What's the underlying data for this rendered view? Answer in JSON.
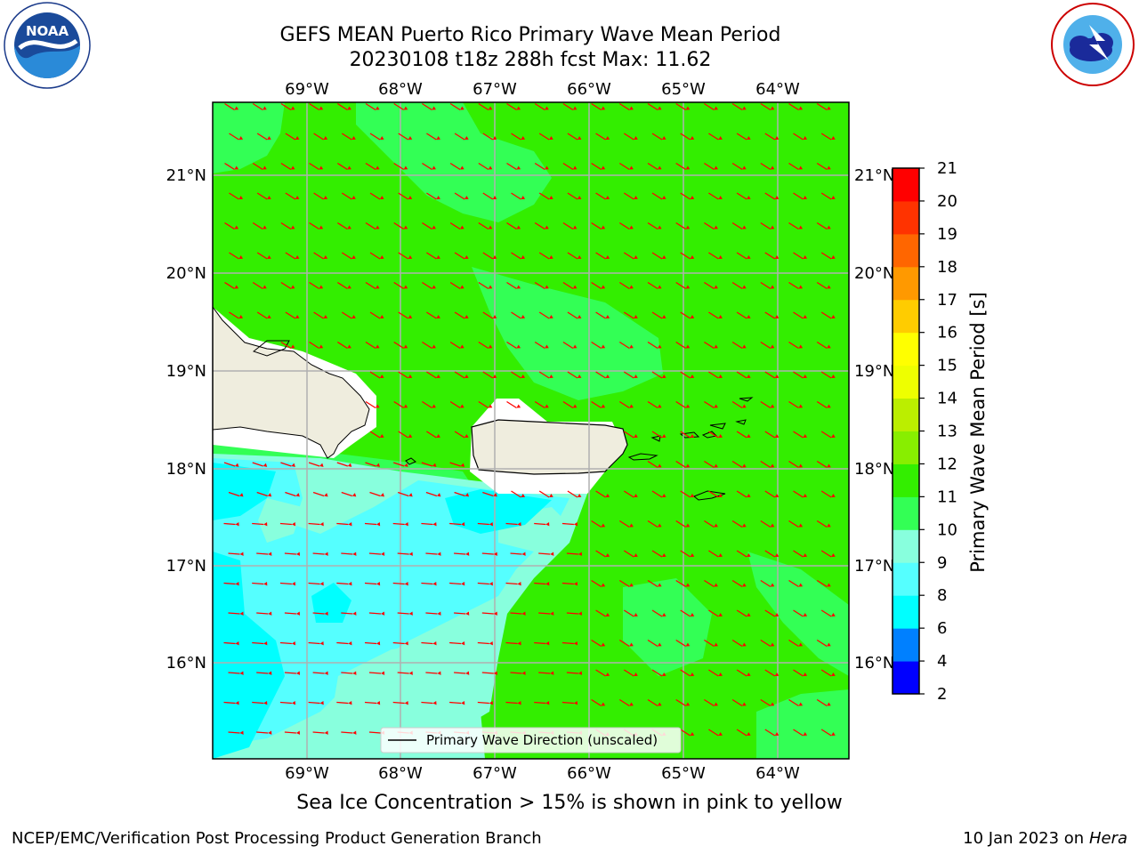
{
  "title": {
    "line1": "GEFS MEAN Puerto Rico Primary Wave Mean Period",
    "line2": "20230108 t18z 288h fcst   Max: 11.62"
  },
  "logos": {
    "noaa_text": "NOAA",
    "noaa_ring_text": "NATIONAL OCEANIC AND ATMOSPHERIC ADMINISTRATION · U.S. DEPARTMENT OF COMMERCE",
    "nws_ring_text": "NATIONAL WEATHER SERVICE"
  },
  "map": {
    "lon_labels": [
      "69°W",
      "68°W",
      "67°W",
      "66°W",
      "65°W",
      "64°W"
    ],
    "lat_labels": [
      "21°N",
      "20°N",
      "19°N",
      "18°N",
      "17°N",
      "16°N"
    ],
    "legend_label": "Primary Wave Direction (unscaled)",
    "arrow_color": "#ff0000",
    "land_color": "#efedde",
    "colors": {
      "green": "#33ee00",
      "light_green": "#33ff55",
      "aqua": "#88ffdd",
      "cyan_light": "#55ffff",
      "cyan": "#00ffff"
    }
  },
  "colorbar": {
    "label": "Primary Wave Mean Period [s]",
    "ticks": [
      "2",
      "4",
      "6",
      "8",
      "9",
      "10",
      "11",
      "12",
      "13",
      "14",
      "15",
      "16",
      "17",
      "18",
      "19",
      "20",
      "21"
    ],
    "colors": [
      "#0000ff",
      "#0080ff",
      "#00ffff",
      "#55ffff",
      "#88ffdd",
      "#33ff55",
      "#33ee00",
      "#88ee00",
      "#bbee00",
      "#eeff00",
      "#ffff00",
      "#ffcc00",
      "#ff9900",
      "#ff6600",
      "#ff3300",
      "#ff0000"
    ]
  },
  "note": "Sea Ice Concentration > 15% is shown in pink to yellow",
  "footer": {
    "left": "NCEP/EMC/Verification Post Processing Product Generation Branch",
    "right_date": "10 Jan 2023 on ",
    "right_host": "Hera"
  }
}
